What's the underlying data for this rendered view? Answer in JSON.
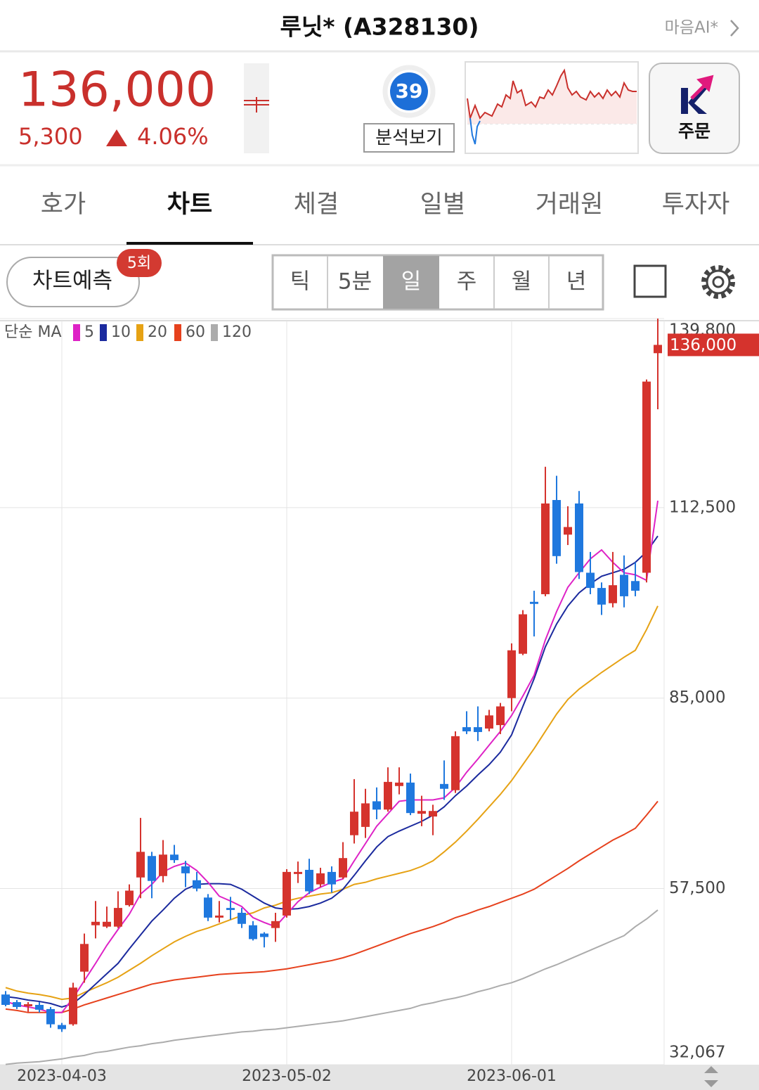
{
  "header": {
    "title": "루닛* (A328130)",
    "next_stock": "마음AI*"
  },
  "quote": {
    "price": "136,000",
    "change": "5,300",
    "change_rate": "4.06%",
    "score": "39",
    "analysis_button": "분석보기",
    "order_button": "주문"
  },
  "tabs": [
    "호가",
    "차트",
    "체결",
    "일별",
    "거래원",
    "투자자"
  ],
  "toolbar": {
    "predict_button": "차트예측",
    "predict_badge": "5회",
    "periods": [
      "틱",
      "5분",
      "일",
      "주",
      "월",
      "년"
    ]
  },
  "chart_data": {
    "type": "candlestick",
    "categories": [
      null,
      null,
      null,
      null,
      null,
      "2023-04-03",
      null,
      null,
      null,
      null,
      null,
      null,
      null,
      null,
      null,
      null,
      null,
      null,
      null,
      null,
      null,
      null,
      null,
      null,
      null,
      "2023-05-02",
      null,
      null,
      null,
      null,
      null,
      null,
      null,
      null,
      null,
      null,
      null,
      null,
      null,
      null,
      null,
      null,
      null,
      null,
      null,
      "2023-06-01",
      null,
      null,
      null,
      null,
      null,
      null,
      null,
      null,
      null,
      null,
      null,
      null,
      null
    ],
    "open": [
      42200,
      41100,
      40500,
      40700,
      40100,
      37800,
      37900,
      45500,
      52200,
      52000,
      52000,
      55100,
      59100,
      62200,
      59300,
      62400,
      60700,
      58700,
      56200,
      53300,
      54700,
      54000,
      52200,
      51000,
      51800,
      53600,
      59600,
      60200,
      58100,
      59900,
      59100,
      65200,
      66400,
      70100,
      68900,
      72300,
      72800,
      68300,
      67900,
      72600,
      71700,
      80800,
      80800,
      80600,
      81100,
      85000,
      91400,
      98900,
      100000,
      113600,
      108600,
      113100,
      103100,
      100900,
      98700,
      102800,
      101900,
      103100,
      134800
    ],
    "high": [
      42700,
      41400,
      41100,
      41100,
      40400,
      38100,
      43900,
      51000,
      55700,
      54900,
      57100,
      58100,
      67700,
      62800,
      64500,
      63800,
      61500,
      59900,
      56700,
      55700,
      56300,
      54700,
      52800,
      51200,
      54000,
      60300,
      61400,
      61800,
      60500,
      60700,
      64200,
      73300,
      71900,
      72100,
      75000,
      75000,
      74100,
      70900,
      69600,
      76000,
      80200,
      83100,
      83800,
      83300,
      84300,
      92900,
      97700,
      100500,
      118400,
      117100,
      112700,
      114900,
      106100,
      101700,
      106100,
      105600,
      104600,
      131000,
      139800
    ],
    "low": [
      40500,
      40100,
      39700,
      39600,
      37400,
      36800,
      37700,
      43900,
      50300,
      51800,
      51800,
      54900,
      56100,
      56100,
      58400,
      61200,
      57700,
      57100,
      52800,
      52600,
      53000,
      51800,
      50000,
      49000,
      49800,
      53300,
      58300,
      56700,
      57700,
      56900,
      58900,
      64000,
      64800,
      67500,
      68600,
      71100,
      68100,
      66500,
      65200,
      70300,
      71300,
      79800,
      78800,
      80200,
      79800,
      83100,
      91200,
      93900,
      99700,
      104400,
      107100,
      102200,
      100000,
      97000,
      98100,
      98100,
      99700,
      101700,
      126700
    ],
    "close": [
      40700,
      40400,
      40800,
      40000,
      37900,
      37200,
      43200,
      49500,
      52700,
      52700,
      54700,
      57200,
      62800,
      58600,
      62400,
      61600,
      59700,
      57500,
      53300,
      53600,
      54400,
      52400,
      50200,
      50500,
      52800,
      59900,
      59900,
      57100,
      59700,
      58100,
      61900,
      68600,
      69800,
      68900,
      72900,
      72800,
      68400,
      68700,
      68700,
      71900,
      79500,
      80200,
      80100,
      82500,
      83800,
      91900,
      97100,
      98600,
      113100,
      105500,
      109700,
      103200,
      100900,
      98500,
      101300,
      99700,
      100500,
      130700,
      136000
    ],
    "last_label": "136,000",
    "up_color": "#d5332d",
    "down_color": "#1f78de",
    "moving_averages": {
      "label": "단순 MA",
      "series": [
        {
          "name": "5",
          "color": "#de22c6",
          "values": [
            41200,
            40700,
            40400,
            40100,
            39600,
            39600,
            41700,
            44200,
            46700,
            49300,
            51600,
            53800,
            56700,
            58100,
            59900,
            60700,
            61200,
            60100,
            58400,
            56400,
            55700,
            54900,
            53300,
            52600,
            52000,
            53800,
            55600,
            56900,
            57700,
            58400,
            58900,
            61500,
            64000,
            66500,
            68300,
            70100,
            70300,
            70300,
            70300,
            70600,
            72100,
            74300,
            76200,
            78200,
            80200,
            82500,
            85300,
            88300,
            93400,
            97500,
            101000,
            103100,
            105100,
            106400,
            104600,
            103100,
            102800,
            102000,
            113500
          ]
        },
        {
          "name": "10",
          "color": "#1b2a9e",
          "values": [
            41900,
            41700,
            41400,
            41200,
            40900,
            40400,
            40900,
            42200,
            43700,
            45200,
            46700,
            48800,
            50800,
            52800,
            54400,
            56100,
            57400,
            58100,
            58200,
            58200,
            58100,
            57400,
            56400,
            55400,
            54700,
            54500,
            54600,
            54900,
            55400,
            56100,
            57400,
            59400,
            61500,
            63500,
            65000,
            65800,
            66500,
            67200,
            68100,
            69300,
            70900,
            72300,
            73900,
            75400,
            77200,
            79700,
            83800,
            87800,
            92400,
            95700,
            98300,
            100200,
            101500,
            102600,
            103100,
            103600,
            104600,
            106100,
            108400
          ]
        },
        {
          "name": "20",
          "color": "#e6a214",
          "values": [
            43200,
            42700,
            42400,
            42200,
            41900,
            41500,
            41700,
            42500,
            43200,
            43900,
            44700,
            45700,
            46700,
            47800,
            48800,
            49800,
            50600,
            51300,
            51800,
            52400,
            53000,
            53600,
            54000,
            54700,
            55100,
            55700,
            56100,
            56400,
            56700,
            56900,
            57400,
            58100,
            58400,
            58900,
            59300,
            59700,
            60100,
            60700,
            61500,
            62800,
            64200,
            65800,
            67500,
            69300,
            71100,
            73100,
            75400,
            77700,
            80200,
            82700,
            84800,
            86300,
            87500,
            88700,
            89800,
            90900,
            91900,
            94900,
            98300
          ]
        },
        {
          "name": "60",
          "color": "#e6411d",
          "values": [
            40100,
            39900,
            39600,
            39600,
            39600,
            39600,
            40100,
            40700,
            41200,
            41700,
            42200,
            42700,
            43200,
            43700,
            44000,
            44300,
            44500,
            44700,
            44900,
            45100,
            45200,
            45300,
            45400,
            45500,
            45700,
            45900,
            46200,
            46500,
            46800,
            47100,
            47500,
            48000,
            48600,
            49200,
            49800,
            50400,
            51000,
            51500,
            52000,
            52600,
            53300,
            53800,
            54400,
            54900,
            55500,
            56100,
            56700,
            57400,
            58400,
            59400,
            60400,
            61500,
            62500,
            63500,
            64500,
            65300,
            66200,
            68100,
            70100
          ]
        },
        {
          "name": "120",
          "color": "#acacac",
          "values": [
            32100,
            32300,
            32400,
            32500,
            32700,
            32900,
            33200,
            33400,
            33800,
            34000,
            34300,
            34600,
            34800,
            35100,
            35300,
            35600,
            35800,
            36000,
            36200,
            36400,
            36600,
            36800,
            36900,
            37100,
            37200,
            37400,
            37600,
            37800,
            38000,
            38200,
            38400,
            38700,
            39000,
            39300,
            39600,
            39900,
            40200,
            40700,
            41000,
            41400,
            41700,
            42100,
            42600,
            43000,
            43500,
            43900,
            44500,
            45200,
            45900,
            46500,
            47200,
            47900,
            48600,
            49300,
            50000,
            50700,
            52000,
            53100,
            54400
          ]
        }
      ]
    },
    "ylim": [
      32067,
      139800
    ],
    "yticks": [
      {
        "value": 32067,
        "label": "32,067"
      },
      {
        "value": 57500,
        "label": "57,500"
      },
      {
        "value": 85000,
        "label": "85,000"
      },
      {
        "value": 112500,
        "label": "112,500"
      },
      {
        "value": 139800,
        "label": "139,800"
      }
    ],
    "grid": true
  }
}
